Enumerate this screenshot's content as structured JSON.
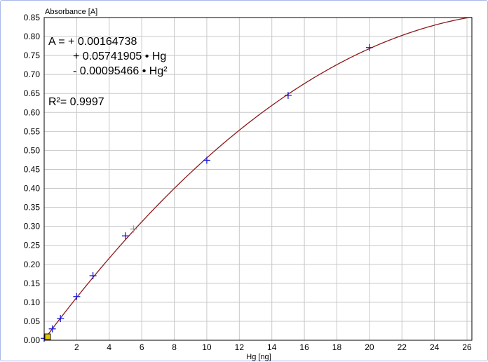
{
  "chart_data": {
    "type": "scatter",
    "ylabel": "Absorbance [A]",
    "xlabel": "Hg [ng]",
    "xlim": [
      0,
      26.3
    ],
    "ylim": [
      0,
      0.85
    ],
    "xticks": [
      "0",
      "2",
      "4",
      "6",
      "8",
      "10",
      "12",
      "14",
      "16",
      "18",
      "20",
      "22",
      "24",
      "26"
    ],
    "yticks": [
      "0.00",
      "0.05",
      "0.10",
      "0.15",
      "0.20",
      "0.25",
      "0.30",
      "0.35",
      "0.40",
      "0.45",
      "0.50",
      "0.55",
      "0.60",
      "0.65",
      "0.70",
      "0.75",
      "0.80",
      "0.85"
    ],
    "grid": true,
    "points": {
      "x": [
        0,
        0.5,
        1,
        2,
        3,
        5,
        10,
        15,
        20
      ],
      "y": [
        0.005,
        0.03,
        0.057,
        0.115,
        0.17,
        0.275,
        0.474,
        0.645,
        0.771
      ],
      "color": "#1a1ad8"
    },
    "excluded_point": {
      "x": 5.5,
      "y": 0.293,
      "color": "#9a9a9a"
    },
    "fit_curve": {
      "model": "quadratic",
      "coefficients": [
        0.00164738,
        0.05741905,
        -0.00095466
      ],
      "color": "#8b1a1a"
    },
    "equation": {
      "line1": "A = + 0.00164738",
      "line2": "+ 0.05741905 • Hg",
      "line3": "-  0.00095466 • Hg²",
      "r2": "R²= 0.9997"
    }
  }
}
